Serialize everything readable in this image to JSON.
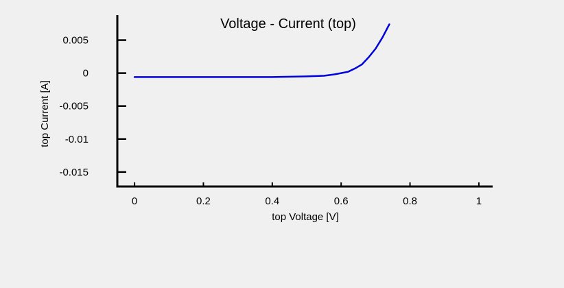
{
  "chart_data": {
    "type": "line",
    "title": "Voltage - Current (top)",
    "xlabel": "top Voltage [V]",
    "ylabel": "top Current [A]",
    "xlim": [
      -0.05,
      1.04
    ],
    "ylim": [
      -0.0172,
      0.0088
    ],
    "x_ticks": [
      0,
      0.2,
      0.4,
      0.6,
      0.8,
      1
    ],
    "x_tick_labels": [
      "0",
      "0.2",
      "0.4",
      "0.6",
      "0.8",
      "1"
    ],
    "y_ticks": [
      0.005,
      0,
      -0.005,
      -0.01,
      -0.015
    ],
    "y_tick_labels": [
      "0.005",
      "0",
      "-0.005",
      "-0.01",
      "-0.015"
    ],
    "grid": false,
    "series": [
      {
        "color": "#0000dd",
        "x": [
          0,
          0.1,
          0.2,
          0.3,
          0.4,
          0.45,
          0.5,
          0.55,
          0.58,
          0.6,
          0.62,
          0.64,
          0.66,
          0.68,
          0.7,
          0.72,
          0.74
        ],
        "y": [
          -0.0006,
          -0.0006,
          -0.0006,
          -0.0006,
          -0.0006,
          -0.00055,
          -0.0005,
          -0.0004,
          -0.0002,
          0.0,
          0.0002,
          0.0007,
          0.0013,
          0.0024,
          0.0037,
          0.0054,
          0.0074
        ]
      }
    ]
  }
}
